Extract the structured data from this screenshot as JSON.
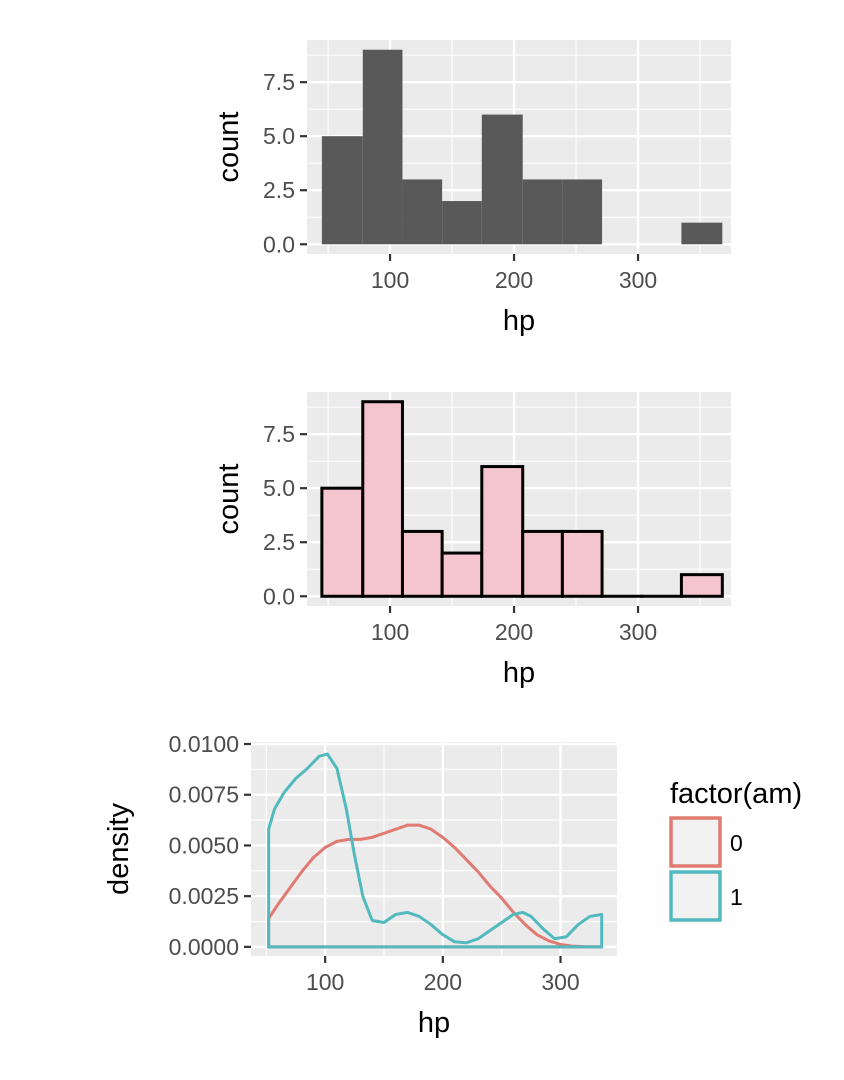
{
  "chart_data": [
    {
      "type": "bar",
      "subtype": "histogram",
      "xlabel": "hp",
      "ylabel": "count",
      "xlim": [
        33,
        375
      ],
      "ylim": [
        -0.45,
        9.45
      ],
      "x_ticks": [
        100,
        200,
        300
      ],
      "y_ticks": [
        0.0,
        2.5,
        5.0,
        7.5
      ],
      "x_tick_labels": [
        "100",
        "200",
        "300"
      ],
      "y_tick_labels": [
        "0.0",
        "2.5",
        "5.0",
        "7.5"
      ],
      "bins": [
        {
          "start": 45,
          "end": 78,
          "count": 5
        },
        {
          "start": 78,
          "end": 110,
          "count": 9
        },
        {
          "start": 110,
          "end": 142,
          "count": 3
        },
        {
          "start": 142,
          "end": 174,
          "count": 2
        },
        {
          "start": 174,
          "end": 207,
          "count": 6
        },
        {
          "start": 207,
          "end": 239,
          "count": 3
        },
        {
          "start": 239,
          "end": 271,
          "count": 3
        },
        {
          "start": 271,
          "end": 303,
          "count": 0
        },
        {
          "start": 303,
          "end": 335,
          "count": 0
        },
        {
          "start": 335,
          "end": 368,
          "count": 1
        }
      ],
      "fill": "#595959",
      "outline": "none",
      "grid": true
    },
    {
      "type": "bar",
      "subtype": "histogram",
      "xlabel": "hp",
      "ylabel": "count",
      "xlim": [
        33,
        375
      ],
      "ylim": [
        -0.45,
        9.45
      ],
      "x_ticks": [
        100,
        200,
        300
      ],
      "y_ticks": [
        0.0,
        2.5,
        5.0,
        7.5
      ],
      "x_tick_labels": [
        "100",
        "200",
        "300"
      ],
      "y_tick_labels": [
        "0.0",
        "2.5",
        "5.0",
        "7.5"
      ],
      "bins": [
        {
          "start": 45,
          "end": 78,
          "count": 5
        },
        {
          "start": 78,
          "end": 110,
          "count": 9
        },
        {
          "start": 110,
          "end": 142,
          "count": 3
        },
        {
          "start": 142,
          "end": 174,
          "count": 2
        },
        {
          "start": 174,
          "end": 207,
          "count": 6
        },
        {
          "start": 207,
          "end": 239,
          "count": 3
        },
        {
          "start": 239,
          "end": 271,
          "count": 3
        },
        {
          "start": 271,
          "end": 303,
          "count": 0
        },
        {
          "start": 303,
          "end": 335,
          "count": 0
        },
        {
          "start": 335,
          "end": 368,
          "count": 1
        }
      ],
      "fill": "#f4c5ce",
      "outline": "#000000",
      "grid": true
    },
    {
      "type": "area",
      "subtype": "density",
      "xlabel": "hp",
      "ylabel": "density",
      "xlim": [
        37,
        348
      ],
      "ylim": [
        -0.00045,
        0.0101
      ],
      "x_ticks": [
        100,
        200,
        300
      ],
      "y_ticks": [
        0.0,
        0.0025,
        0.005,
        0.0075,
        0.01
      ],
      "x_tick_labels": [
        "100",
        "200",
        "300"
      ],
      "y_tick_labels": [
        "0.0000",
        "0.0025",
        "0.0050",
        "0.0075",
        "0.0100"
      ],
      "grid": true,
      "legend": {
        "title": "factor(am)",
        "placement": "right",
        "entries": [
          {
            "label": "0",
            "color": "#e07b72"
          },
          {
            "label": "1",
            "color": "#52b9bf"
          }
        ]
      },
      "series": [
        {
          "name": "0",
          "color": "#e07b72",
          "x": [
            52,
            60,
            70,
            80,
            90,
            100,
            110,
            120,
            130,
            140,
            150,
            160,
            170,
            180,
            190,
            200,
            210,
            220,
            230,
            240,
            250,
            260,
            270,
            280,
            290,
            300,
            310,
            320,
            335
          ],
          "y": [
            0.0014,
            0.0021,
            0.0029,
            0.0037,
            0.0044,
            0.0049,
            0.0052,
            0.0053,
            0.0053,
            0.0054,
            0.0056,
            0.0058,
            0.006,
            0.006,
            0.0058,
            0.0054,
            0.0049,
            0.0043,
            0.0037,
            0.003,
            0.0024,
            0.0017,
            0.0011,
            0.0006,
            0.0003,
            0.00012,
            4e-05,
            1e-05,
            0.0
          ]
        },
        {
          "name": "1",
          "color": "#52b9bf",
          "x": [
            52,
            57,
            65,
            75,
            85,
            95,
            102,
            110,
            118,
            125,
            132,
            140,
            150,
            160,
            170,
            180,
            190,
            200,
            210,
            220,
            230,
            240,
            250,
            260,
            268,
            275,
            285,
            295,
            305,
            315,
            325,
            335
          ],
          "y": [
            0.0058,
            0.0068,
            0.0076,
            0.0083,
            0.0088,
            0.0094,
            0.0095,
            0.0088,
            0.0068,
            0.0045,
            0.0025,
            0.0013,
            0.0012,
            0.0016,
            0.0017,
            0.0015,
            0.0011,
            0.0006,
            0.00025,
            0.0002,
            0.0004,
            0.0008,
            0.0012,
            0.0016,
            0.0017,
            0.0015,
            0.0009,
            0.0004,
            0.0005,
            0.0011,
            0.0015,
            0.0016
          ]
        }
      ]
    }
  ]
}
